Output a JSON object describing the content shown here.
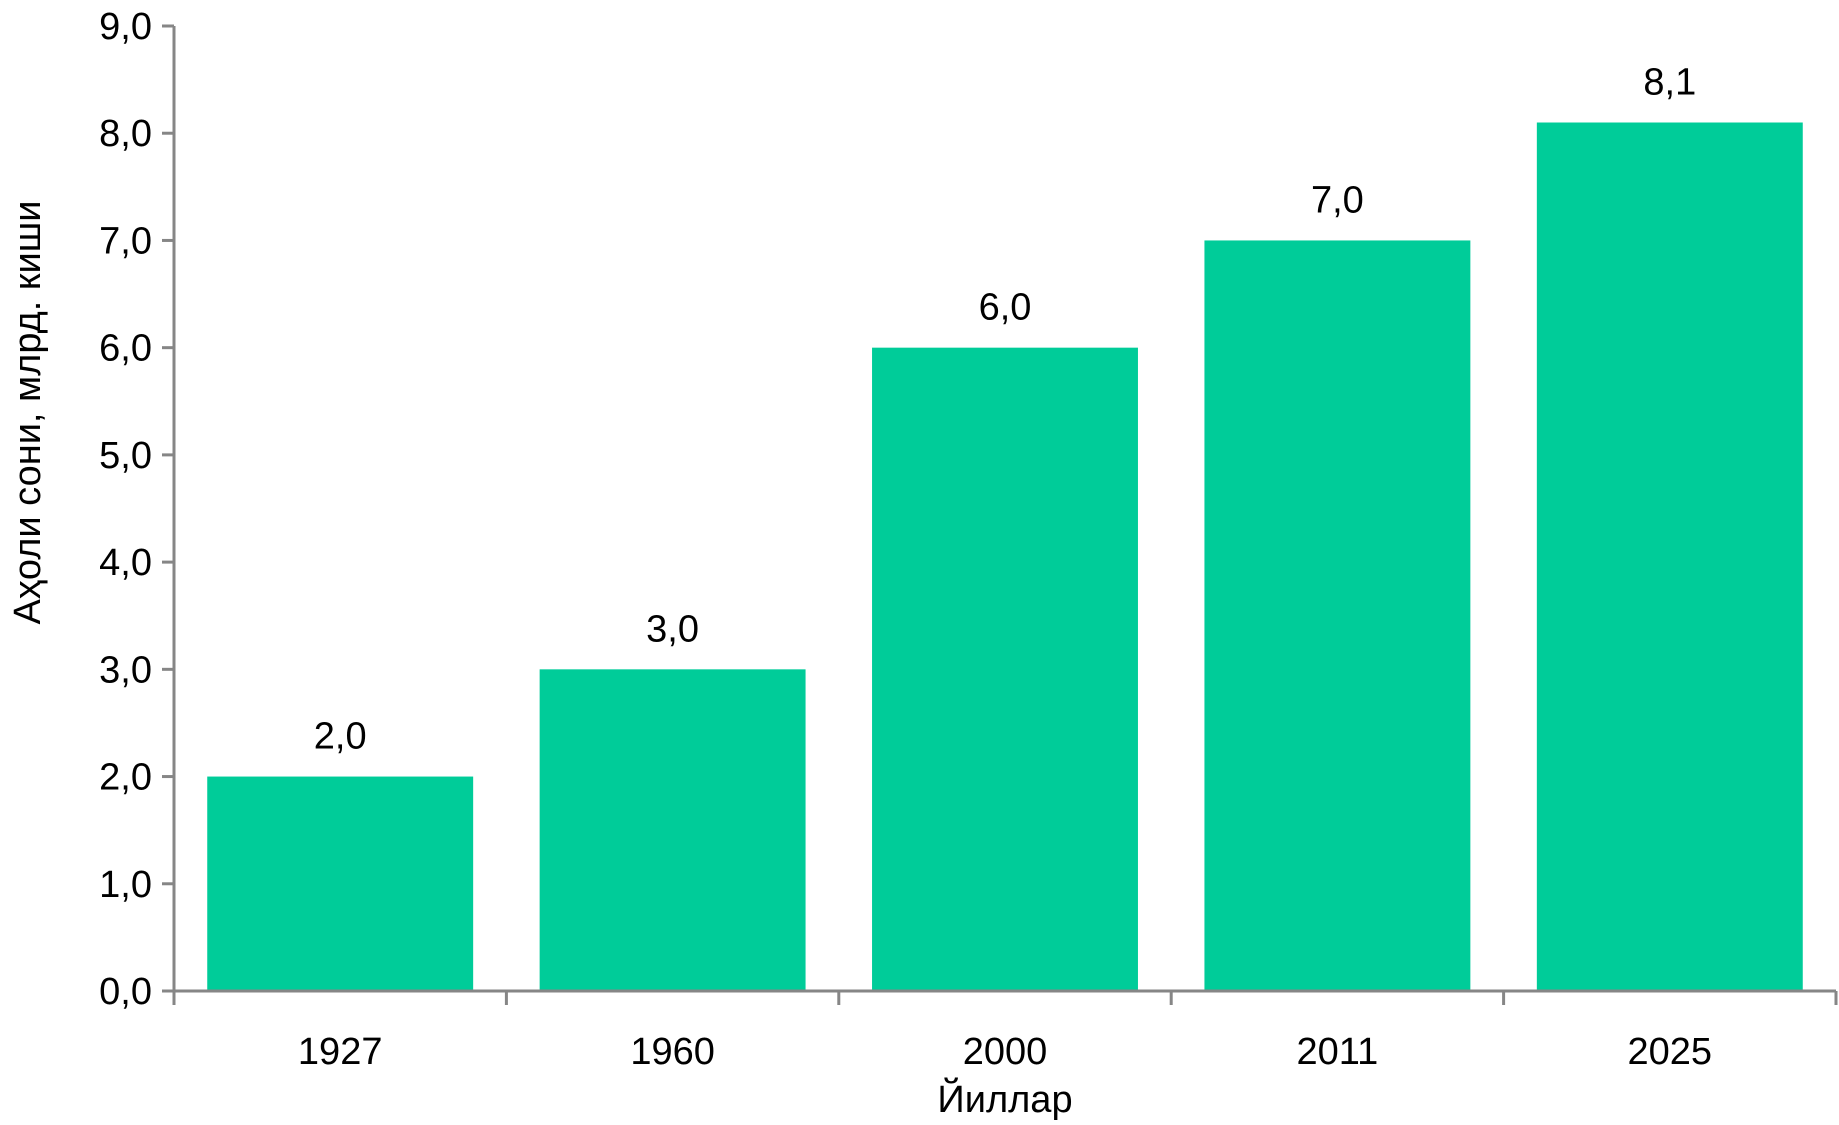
{
  "chart_data": {
    "type": "bar",
    "title": "",
    "xlabel": "Йиллар",
    "ylabel": "Аҳоли сони,  млрд. киши",
    "categories": [
      "1927",
      "1960",
      "2000",
      "2011",
      "2025"
    ],
    "values": [
      2.0,
      3.0,
      6.0,
      7.0,
      8.1
    ],
    "data_labels": [
      "2,0",
      "3,0",
      "6,0",
      "7,0",
      "8,1"
    ],
    "ylim": [
      0,
      9
    ],
    "yticks": [
      0,
      1,
      2,
      3,
      4,
      5,
      6,
      7,
      8,
      9
    ],
    "ytick_labels": [
      "0,0",
      "1,0",
      "2,0",
      "3,0",
      "4,0",
      "5,0",
      "6,0",
      "7,0",
      "8,0",
      "9,0"
    ],
    "grid": false,
    "legend": "none",
    "bar_color": "#00CC99",
    "axis_color": "#868686"
  }
}
